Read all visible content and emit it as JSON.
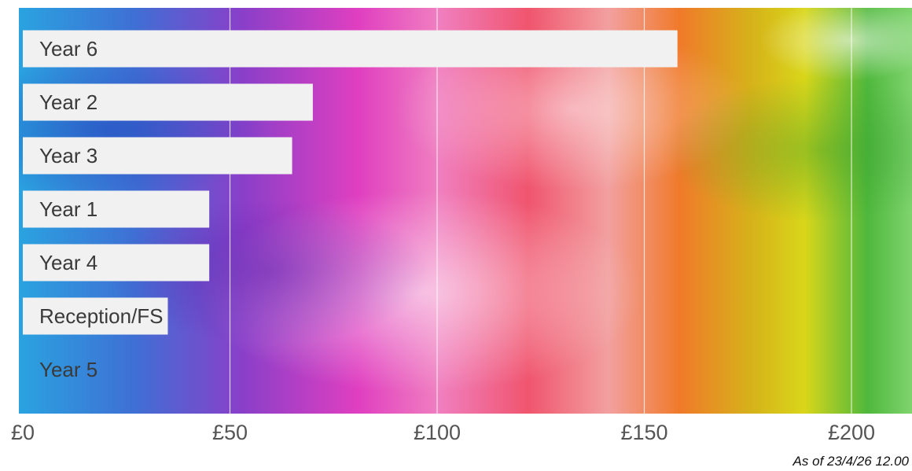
{
  "chart_data": {
    "type": "bar",
    "orientation": "horizontal",
    "categories": [
      "Year 6",
      "Year 2",
      "Year 3",
      "Year 1",
      "Year 4",
      "Reception/FS",
      "Year 5"
    ],
    "values": [
      158,
      70,
      65,
      45,
      45,
      35,
      0
    ],
    "xlim": [
      0,
      213
    ],
    "x_ticks": [
      0,
      50,
      100,
      150,
      200
    ],
    "x_tick_labels": [
      "£0",
      "£50",
      "£100",
      "£150",
      "£200"
    ],
    "grid": "vertical",
    "bar_color": "#f1f1f1",
    "background": "watercolor rainbow (blue, purple, magenta, pink, red, orange, yellow, green)",
    "title": "",
    "xlabel": "",
    "ylabel": ""
  },
  "footer": {
    "timestamp": "As of 23/4/26 12.00"
  }
}
